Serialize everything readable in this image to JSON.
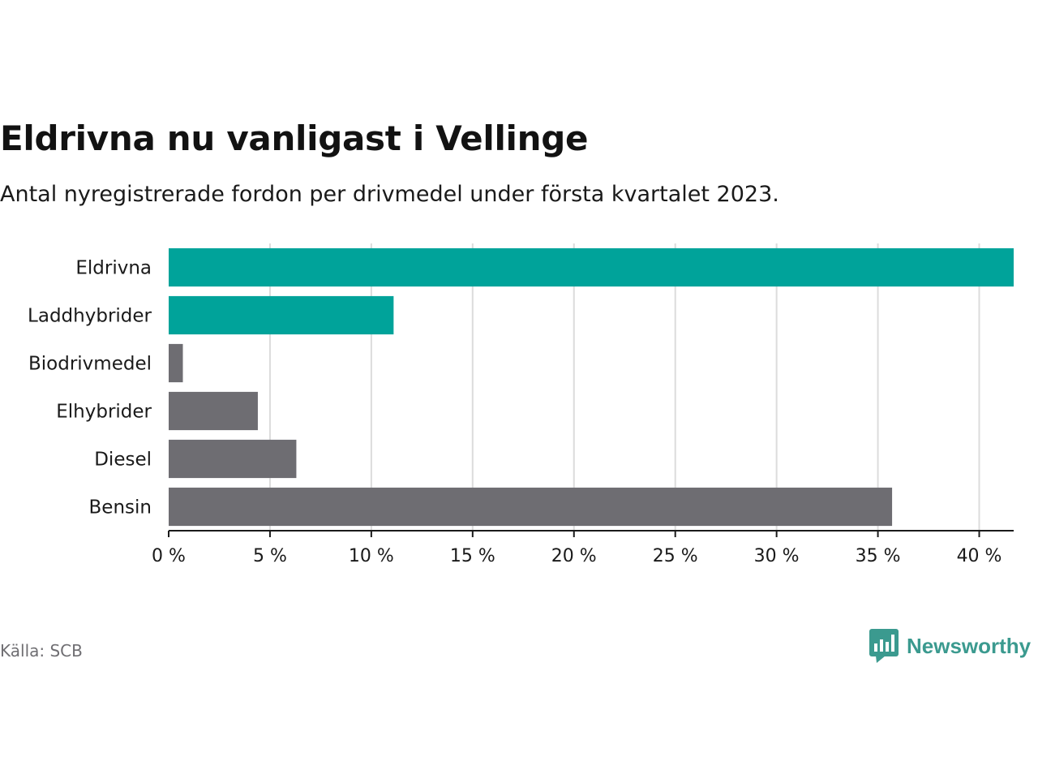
{
  "chart_data": {
    "type": "bar",
    "orientation": "horizontal",
    "title": "Eldrivna nu vanligast i Vellinge",
    "subtitle": "Antal nyregistrerade fordon per drivmedel under första kvartalet 2023.",
    "categories": [
      "Eldrivna",
      "Laddhybrider",
      "Biodrivmedel",
      "Elhybrider",
      "Diesel",
      "Bensin"
    ],
    "values": [
      41.7,
      11.1,
      0.7,
      4.4,
      6.3,
      35.7
    ],
    "bar_colors": [
      "#00a39a",
      "#00a39a",
      "#6e6d72",
      "#6e6d72",
      "#6e6d72",
      "#6e6d72"
    ],
    "xlim": [
      0,
      41.7
    ],
    "xticks": [
      0,
      5,
      10,
      15,
      20,
      25,
      30,
      35,
      40
    ],
    "tick_suffix": " %",
    "grid": true,
    "legend": "none"
  },
  "source": "Källa: SCB",
  "brand": {
    "name": "Newsworthy",
    "logo_icon": "bar-chart-speech-bubble-icon",
    "color": "#3b9a8f"
  }
}
